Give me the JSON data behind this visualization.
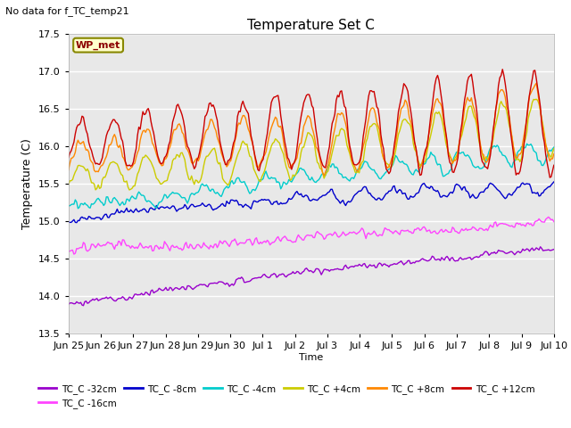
{
  "title": "Temperature Set C",
  "subtitle": "No data for f_TC_temp21",
  "xlabel": "Time",
  "ylabel": "Temperature (C)",
  "ylim": [
    13.5,
    17.5
  ],
  "yticks": [
    13.5,
    14.0,
    14.5,
    15.0,
    15.5,
    16.0,
    16.5,
    17.0,
    17.5
  ],
  "legend_label": "WP_met",
  "series_keys": [
    "TC_C -32cm",
    "TC_C -16cm",
    "TC_C -8cm",
    "TC_C -4cm",
    "TC_C +4cm",
    "TC_C +8cm",
    "TC_C +12cm"
  ],
  "series_colors": [
    "#9900cc",
    "#ff44ff",
    "#0000cc",
    "#00cccc",
    "#cccc00",
    "#ff8800",
    "#cc0000"
  ],
  "xtick_labels": [
    "Jun 25",
    "Jun 26",
    "Jun 27",
    "Jun 28",
    "Jun 29",
    "Jun 30",
    "Jul 1",
    "Jul 2",
    "Jul 3",
    "Jul 4",
    "Jul 5",
    "Jul 6",
    "Jul 7",
    "Jul 8",
    "Jul 9",
    "Jul 10"
  ],
  "bg_color": "#e8e8e8",
  "fig_color": "#ffffff",
  "lw": 1.0
}
